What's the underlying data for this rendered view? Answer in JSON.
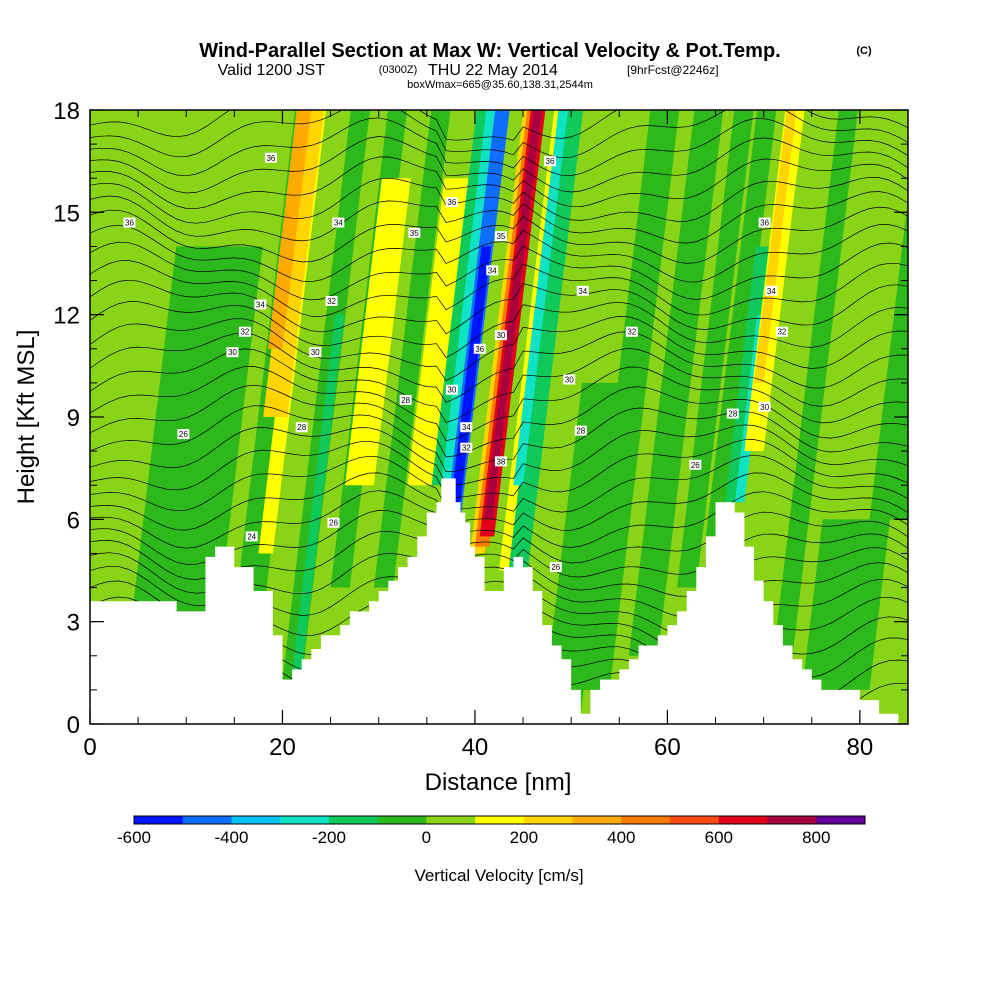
{
  "header": {
    "title": "Wind-Parallel Section at Max W: Vertical Velocity & Pot.Temp.",
    "copyright": "(C)",
    "valid_prefix": "Valid 1200 JST",
    "valid_utc": "(0300Z)",
    "valid_date": "THU 22 May 2014",
    "forecast": "[9hrFcst@2246z]",
    "box_info": "boxWmax=665@35.60,138.31,2544m"
  },
  "chart_data": {
    "type": "heatmap",
    "xlabel": "Distance [nm]",
    "ylabel": "Height [Kft MSL]",
    "xlim": [
      0,
      85
    ],
    "ylim": [
      0,
      18
    ],
    "x_ticks": [
      "0",
      "20",
      "40",
      "60",
      "80"
    ],
    "y_ticks": [
      "0",
      "3",
      "6",
      "9",
      "12",
      "15",
      "18"
    ],
    "colorbar": {
      "label": "Vertical Velocity [cm/s]",
      "min": -600,
      "max": 900,
      "step": 100,
      "tick_labels": [
        "-600",
        "-400",
        "-200",
        "0",
        "200",
        "400",
        "600",
        "800"
      ],
      "colors": [
        "#0015ff",
        "#0f6dff",
        "#05c4ff",
        "#10e2c4",
        "#0fc95a",
        "#2db81c",
        "#8ad418",
        "#ffff00",
        "#ffd400",
        "#ffaa00",
        "#ff7a00",
        "#ff4a10",
        "#e0001a",
        "#a80040",
        "#600098"
      ]
    },
    "terrain": [
      [
        0,
        3.6
      ],
      [
        9,
        3.6
      ],
      [
        9,
        3.3
      ],
      [
        12,
        3.3
      ],
      [
        12,
        4.9
      ],
      [
        13,
        4.9
      ],
      [
        13,
        5.2
      ],
      [
        15,
        5.2
      ],
      [
        15,
        4.6
      ],
      [
        17,
        4.6
      ],
      [
        17,
        3.9
      ],
      [
        19,
        3.9
      ],
      [
        19,
        2.6
      ],
      [
        20,
        2.6
      ],
      [
        20,
        1.3
      ],
      [
        21,
        1.3
      ],
      [
        21,
        1.6
      ],
      [
        22,
        1.6
      ],
      [
        22,
        1.9
      ],
      [
        23,
        1.9
      ],
      [
        23,
        2.2
      ],
      [
        24,
        2.2
      ],
      [
        24,
        2.6
      ],
      [
        26,
        2.6
      ],
      [
        26,
        2.9
      ],
      [
        27,
        2.9
      ],
      [
        27,
        3.3
      ],
      [
        29,
        3.3
      ],
      [
        29,
        3.6
      ],
      [
        30,
        3.6
      ],
      [
        30,
        3.9
      ],
      [
        31,
        3.9
      ],
      [
        31,
        4.2
      ],
      [
        32,
        4.2
      ],
      [
        32,
        4.6
      ],
      [
        33,
        4.6
      ],
      [
        33,
        4.9
      ],
      [
        34,
        4.9
      ],
      [
        34,
        5.5
      ],
      [
        35,
        5.5
      ],
      [
        35,
        6.2
      ],
      [
        36,
        6.2
      ],
      [
        36,
        6.5
      ],
      [
        36.5,
        6.5
      ],
      [
        36.5,
        7.2
      ],
      [
        38,
        7.2
      ],
      [
        38,
        6.5
      ],
      [
        38.5,
        6.5
      ],
      [
        38.5,
        6.2
      ],
      [
        39,
        6.2
      ],
      [
        39,
        5.9
      ],
      [
        39.5,
        5.9
      ],
      [
        39.5,
        5.2
      ],
      [
        40,
        5.2
      ],
      [
        40,
        4.9
      ],
      [
        41,
        4.9
      ],
      [
        41,
        3.9
      ],
      [
        43,
        3.9
      ],
      [
        43,
        4.6
      ],
      [
        44,
        4.6
      ],
      [
        44,
        4.9
      ],
      [
        45,
        4.9
      ],
      [
        45,
        4.6
      ],
      [
        46,
        4.6
      ],
      [
        46,
        3.9
      ],
      [
        47,
        3.9
      ],
      [
        47,
        2.9
      ],
      [
        48,
        2.9
      ],
      [
        48,
        2.3
      ],
      [
        49,
        2.3
      ],
      [
        49,
        1.9
      ],
      [
        50,
        1.9
      ],
      [
        50,
        1.0
      ],
      [
        51,
        1.0
      ],
      [
        51,
        0.3
      ],
      [
        52,
        0.3
      ],
      [
        52,
        1.0
      ],
      [
        53,
        1.0
      ],
      [
        53,
        1.3
      ],
      [
        55,
        1.3
      ],
      [
        55,
        1.6
      ],
      [
        56,
        1.6
      ],
      [
        56,
        1.9
      ],
      [
        57,
        1.9
      ],
      [
        57,
        2.3
      ],
      [
        59,
        2.3
      ],
      [
        59,
        2.6
      ],
      [
        60,
        2.6
      ],
      [
        60,
        2.9
      ],
      [
        61,
        2.9
      ],
      [
        61,
        3.3
      ],
      [
        62,
        3.3
      ],
      [
        62,
        3.9
      ],
      [
        63,
        3.9
      ],
      [
        63,
        4.6
      ],
      [
        64,
        4.6
      ],
      [
        64,
        5.5
      ],
      [
        65,
        5.5
      ],
      [
        65,
        6.5
      ],
      [
        67,
        6.5
      ],
      [
        67,
        6.2
      ],
      [
        68,
        6.2
      ],
      [
        68,
        5.2
      ],
      [
        69,
        5.2
      ],
      [
        69,
        4.2
      ],
      [
        70,
        4.2
      ],
      [
        70,
        3.6
      ],
      [
        71,
        3.6
      ],
      [
        71,
        2.9
      ],
      [
        72,
        2.9
      ],
      [
        72,
        2.3
      ],
      [
        73,
        2.3
      ],
      [
        73,
        1.9
      ],
      [
        74,
        1.9
      ],
      [
        74,
        1.6
      ],
      [
        75,
        1.6
      ],
      [
        75,
        1.3
      ],
      [
        76,
        1.3
      ],
      [
        76,
        1.0
      ],
      [
        80,
        1.0
      ],
      [
        80,
        0.7
      ],
      [
        82,
        0.7
      ],
      [
        82,
        0.3
      ],
      [
        84,
        0.3
      ],
      [
        84,
        0
      ],
      [
        85,
        0
      ]
    ],
    "velocity_bands": [
      {
        "x": 0,
        "w": 85,
        "y0": 0,
        "y1": 18,
        "color": "#8ad418"
      },
      {
        "x": 3,
        "w": 9,
        "y0": 0,
        "y1": 14,
        "color": "#2db81c"
      },
      {
        "x": 14.5,
        "w": 3,
        "y0": 2,
        "y1": 18,
        "color": "#2db81c"
      },
      {
        "x": 17.5,
        "w": 1.5,
        "y0": 5,
        "y1": 18,
        "color": "#ffff00"
      },
      {
        "x": 18,
        "w": 2.5,
        "y0": 9,
        "y1": 18,
        "color": "#ffd400"
      },
      {
        "x": 18.5,
        "w": 1.5,
        "y0": 11,
        "y1": 18,
        "color": "#ffaa00"
      },
      {
        "x": 20,
        "w": 2,
        "y0": 1.3,
        "y1": 18,
        "color": "#2db81c"
      },
      {
        "x": 21,
        "w": 1,
        "y0": 1.5,
        "y1": 12,
        "color": "#0fc95a"
      },
      {
        "x": 25,
        "w": 2,
        "y0": 4,
        "y1": 18,
        "color": "#2db81c"
      },
      {
        "x": 26.5,
        "w": 3,
        "y0": 7,
        "y1": 16,
        "color": "#ffff00"
      },
      {
        "x": 29.5,
        "w": 2,
        "y0": 4,
        "y1": 18,
        "color": "#2db81c"
      },
      {
        "x": 33,
        "w": 2.5,
        "y0": 7,
        "y1": 16,
        "color": "#ffff00"
      },
      {
        "x": 35.5,
        "w": 1.5,
        "y0": 7,
        "y1": 18,
        "color": "#0fc95a"
      },
      {
        "x": 36.5,
        "w": 1.5,
        "y0": 7,
        "y1": 18,
        "color": "#10e2c4"
      },
      {
        "x": 37,
        "w": 1.5,
        "y0": 6,
        "y1": 18,
        "color": "#0f6dff"
      },
      {
        "x": 37.5,
        "w": 1,
        "y0": 6.5,
        "y1": 14,
        "color": "#0015ff"
      },
      {
        "x": 39.5,
        "w": 1.5,
        "y0": 5,
        "y1": 18,
        "color": "#ffd400"
      },
      {
        "x": 40,
        "w": 1.5,
        "y0": 5.2,
        "y1": 18,
        "color": "#ff7a00"
      },
      {
        "x": 40.5,
        "w": 1.5,
        "y0": 5.5,
        "y1": 18,
        "color": "#e0001a"
      },
      {
        "x": 41,
        "w": 0.8,
        "y0": 6,
        "y1": 18,
        "color": "#a80040"
      },
      {
        "x": 42.5,
        "w": 1,
        "y0": 4.5,
        "y1": 18,
        "color": "#ffff00"
      },
      {
        "x": 43.5,
        "w": 2,
        "y0": 4.5,
        "y1": 18,
        "color": "#0fc95a"
      },
      {
        "x": 44,
        "w": 1,
        "y0": 7,
        "y1": 18,
        "color": "#10e2c4"
      },
      {
        "x": 47,
        "w": 4,
        "y0": 0.3,
        "y1": 10,
        "color": "#2db81c"
      },
      {
        "x": 51,
        "w": 3,
        "y0": 1,
        "y1": 18,
        "color": "#2db81c"
      },
      {
        "x": 56,
        "w": 3,
        "y0": 2,
        "y1": 18,
        "color": "#2db81c"
      },
      {
        "x": 61,
        "w": 2,
        "y0": 4,
        "y1": 18,
        "color": "#2db81c"
      },
      {
        "x": 64,
        "w": 2,
        "y0": 5.5,
        "y1": 18,
        "color": "#2db81c"
      },
      {
        "x": 66,
        "w": 1.5,
        "y0": 6.5,
        "y1": 14,
        "color": "#0fc95a"
      },
      {
        "x": 67,
        "w": 1,
        "y0": 6.5,
        "y1": 12,
        "color": "#10e2c4"
      },
      {
        "x": 68,
        "w": 2,
        "y0": 8,
        "y1": 18,
        "color": "#ffff00"
      },
      {
        "x": 69,
        "w": 1,
        "y0": 10,
        "y1": 18,
        "color": "#ffd400"
      },
      {
        "x": 71,
        "w": 2,
        "y0": 2,
        "y1": 18,
        "color": "#2db81c"
      },
      {
        "x": 74,
        "w": 7,
        "y0": 1,
        "y1": 6,
        "color": "#2db81c"
      },
      {
        "x": 81,
        "w": 4,
        "y0": 6,
        "y1": 18,
        "color": "#2db81c"
      }
    ],
    "contour_labels": [
      {
        "x": 4.1,
        "y": 14.7,
        "text": "36"
      },
      {
        "x": 18.8,
        "y": 16.6,
        "text": "36"
      },
      {
        "x": 25.8,
        "y": 14.7,
        "text": "34"
      },
      {
        "x": 33.7,
        "y": 14.4,
        "text": "35"
      },
      {
        "x": 37.6,
        "y": 15.3,
        "text": "36"
      },
      {
        "x": 47.8,
        "y": 16.5,
        "text": "36"
      },
      {
        "x": 42.7,
        "y": 14.3,
        "text": "35"
      },
      {
        "x": 41.8,
        "y": 13.3,
        "text": "34"
      },
      {
        "x": 70.1,
        "y": 14.7,
        "text": "36"
      },
      {
        "x": 17.7,
        "y": 12.3,
        "text": "34"
      },
      {
        "x": 25.1,
        "y": 12.4,
        "text": "32"
      },
      {
        "x": 16.1,
        "y": 11.5,
        "text": "32"
      },
      {
        "x": 51.2,
        "y": 12.7,
        "text": "34"
      },
      {
        "x": 70.8,
        "y": 12.7,
        "text": "34"
      },
      {
        "x": 14.8,
        "y": 10.9,
        "text": "30"
      },
      {
        "x": 23.4,
        "y": 10.9,
        "text": "30"
      },
      {
        "x": 40.5,
        "y": 11.0,
        "text": "36"
      },
      {
        "x": 42.7,
        "y": 11.4,
        "text": "30"
      },
      {
        "x": 56.3,
        "y": 11.5,
        "text": "32"
      },
      {
        "x": 71.9,
        "y": 11.5,
        "text": "32"
      },
      {
        "x": 37.6,
        "y": 9.8,
        "text": "30"
      },
      {
        "x": 49.8,
        "y": 10.1,
        "text": "30"
      },
      {
        "x": 32.8,
        "y": 9.5,
        "text": "28"
      },
      {
        "x": 70.1,
        "y": 9.3,
        "text": "30"
      },
      {
        "x": 66.8,
        "y": 9.1,
        "text": "28"
      },
      {
        "x": 22.0,
        "y": 8.7,
        "text": "28"
      },
      {
        "x": 39.1,
        "y": 8.7,
        "text": "34"
      },
      {
        "x": 9.7,
        "y": 8.5,
        "text": "26"
      },
      {
        "x": 51.0,
        "y": 8.6,
        "text": "28"
      },
      {
        "x": 39.1,
        "y": 8.1,
        "text": "32"
      },
      {
        "x": 42.7,
        "y": 7.7,
        "text": "38"
      },
      {
        "x": 62.9,
        "y": 7.6,
        "text": "26"
      },
      {
        "x": 25.3,
        "y": 5.9,
        "text": "26"
      },
      {
        "x": 16.8,
        "y": 5.5,
        "text": "24"
      },
      {
        "x": 48.4,
        "y": 4.6,
        "text": "26"
      }
    ]
  }
}
